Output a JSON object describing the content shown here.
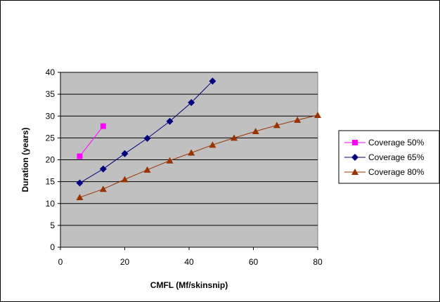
{
  "chart_data": {
    "type": "line",
    "title": "",
    "xlabel": "CMFL (Mf/skinsnip)",
    "ylabel": "Duration (years)",
    "xlim": [
      0,
      80
    ],
    "ylim": [
      0,
      40
    ],
    "xticks": [
      0,
      20,
      40,
      60,
      80
    ],
    "yticks": [
      0,
      5,
      10,
      15,
      20,
      25,
      30,
      35,
      40
    ],
    "grid": "horizontal major gridlines",
    "plot_background": "#C0C0C0",
    "legend_position": "right",
    "series": [
      {
        "name": "Coverage 50%",
        "color": "#FF00FF",
        "marker": "square",
        "points": [
          [
            6,
            20.8
          ],
          [
            13.3,
            27.7
          ]
        ]
      },
      {
        "name": "Coverage 65%",
        "color": "#000080",
        "marker": "diamond",
        "points": [
          [
            6,
            14.7
          ],
          [
            13.3,
            17.9
          ],
          [
            20,
            21.4
          ],
          [
            27,
            24.9
          ],
          [
            34,
            28.8
          ],
          [
            40.7,
            33.1
          ],
          [
            47.3,
            38
          ]
        ]
      },
      {
        "name": "Coverage 80%",
        "color": "#993300",
        "marker": "triangle",
        "points": [
          [
            6,
            11.4
          ],
          [
            13.3,
            13.3
          ],
          [
            20,
            15.5
          ],
          [
            27,
            17.7
          ],
          [
            34,
            19.8
          ],
          [
            40.7,
            21.6
          ],
          [
            47.3,
            23.4
          ],
          [
            54,
            25
          ],
          [
            60.7,
            26.5
          ],
          [
            67.3,
            27.9
          ],
          [
            73.7,
            29.1
          ],
          [
            80,
            30.2
          ]
        ]
      }
    ]
  }
}
